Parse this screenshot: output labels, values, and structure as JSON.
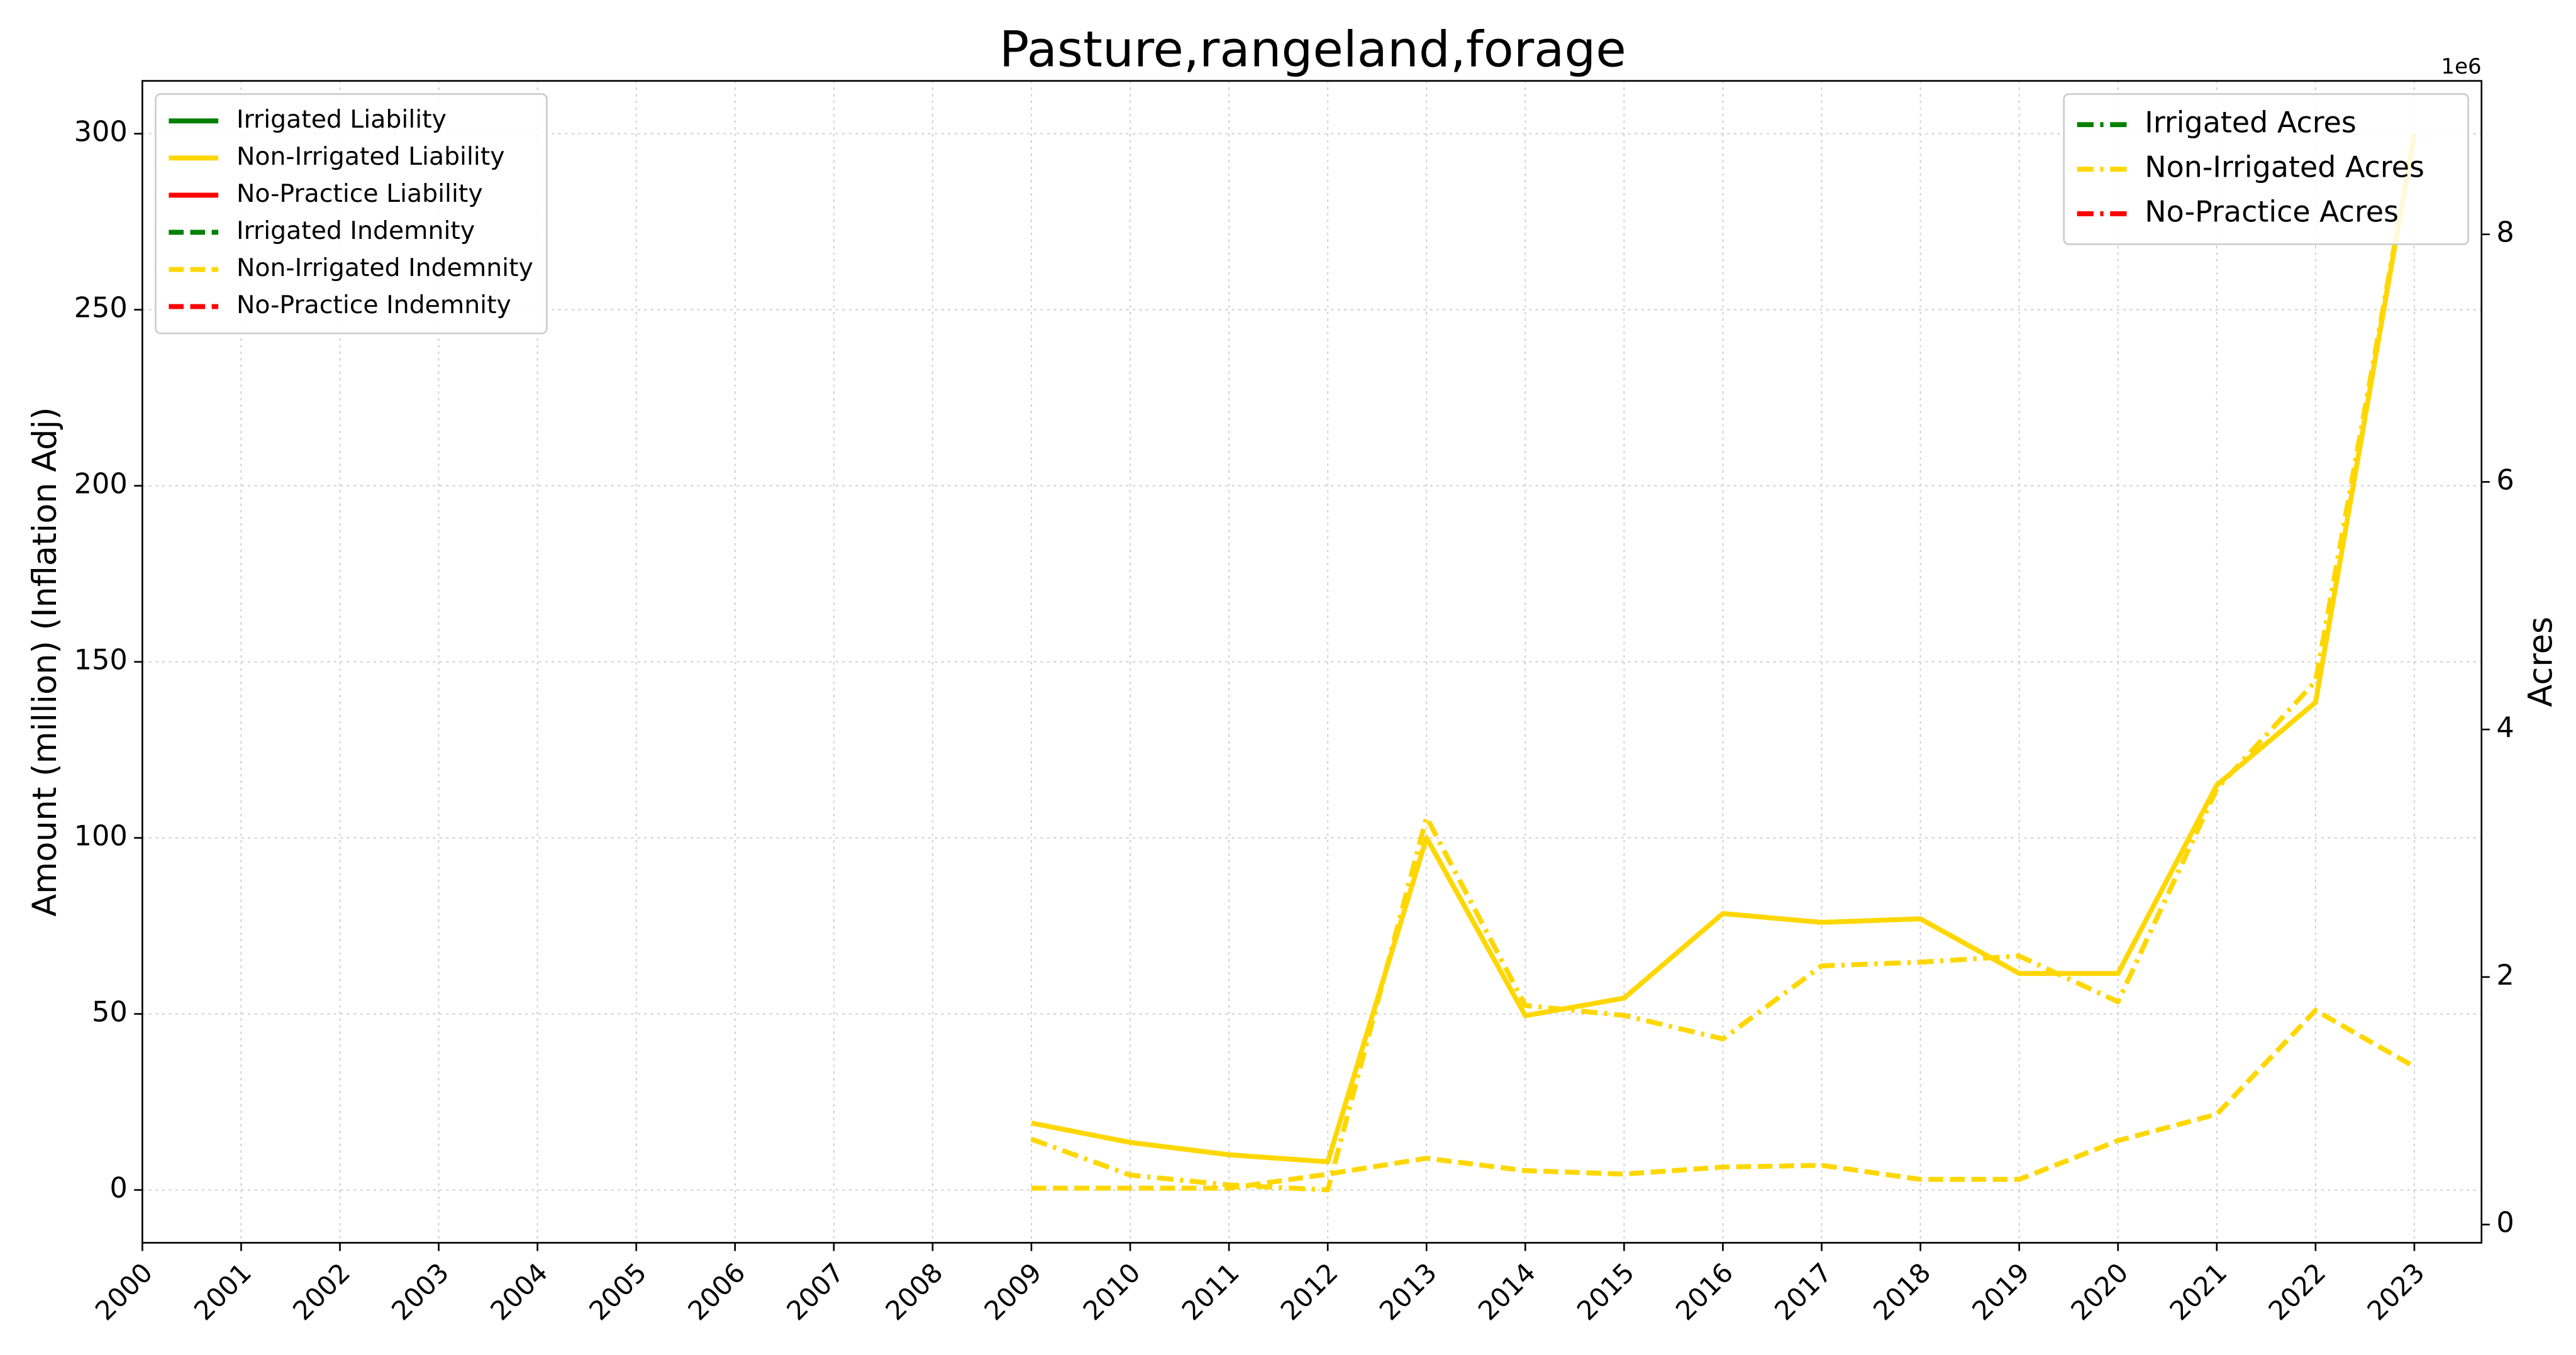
{
  "chart_data": {
    "type": "line",
    "title": "Pasture,rangeland,forage",
    "y_label": "Amount (million) (Inflation Adj)",
    "y2_label": "Acres",
    "y2_offset_label": "1e6",
    "categories": [
      "2000",
      "2001",
      "2002",
      "2003",
      "2004",
      "2005",
      "2006",
      "2007",
      "2008",
      "2009",
      "2010",
      "2011",
      "2012",
      "2013",
      "2014",
      "2015",
      "2016",
      "2017",
      "2018",
      "2019",
      "2020",
      "2021",
      "2022",
      "2023"
    ],
    "ylim": [
      -15,
      315
    ],
    "yticks": [
      0,
      50,
      100,
      150,
      200,
      250,
      300
    ],
    "y2lim": [
      -147000,
      9240000
    ],
    "y2ticks": [
      {
        "value": 0,
        "label": "0"
      },
      {
        "value": 2000000,
        "label": "2"
      },
      {
        "value": 4000000,
        "label": "4"
      },
      {
        "value": 6000000,
        "label": "6"
      },
      {
        "value": 8000000,
        "label": "8"
      }
    ],
    "grid": true,
    "legend": "upper left",
    "legend2": "upper right",
    "series": [
      {
        "name": "Irrigated Liability",
        "color": "green",
        "linestyle": "solid",
        "values": [
          null,
          null,
          null,
          null,
          null,
          null,
          null,
          null,
          null,
          null,
          null,
          null,
          null,
          null,
          null,
          null,
          null,
          null,
          null,
          null,
          null,
          null,
          null,
          null
        ]
      },
      {
        "name": "Non-Irrigated Liability",
        "color": "gold",
        "linestyle": "solid",
        "values": [
          null,
          null,
          null,
          null,
          null,
          null,
          null,
          null,
          null,
          19,
          13.5,
          10,
          8,
          100,
          49.5,
          54.5,
          78.5,
          76,
          77,
          61.5,
          61.5,
          115,
          138.5,
          300
        ]
      },
      {
        "name": "No-Practice Liability",
        "color": "red",
        "linestyle": "solid",
        "values": [
          null,
          null,
          null,
          null,
          null,
          null,
          null,
          null,
          null,
          null,
          null,
          null,
          null,
          null,
          null,
          null,
          null,
          null,
          null,
          null,
          null,
          null,
          null,
          null
        ]
      },
      {
        "name": "Irrigated Indemnity",
        "color": "green",
        "linestyle": "dashed",
        "values": [
          null,
          null,
          null,
          null,
          null,
          null,
          null,
          null,
          null,
          null,
          null,
          null,
          null,
          null,
          null,
          null,
          null,
          null,
          null,
          null,
          null,
          null,
          null,
          null
        ]
      },
      {
        "name": "Non-Irrigated Indemnity",
        "color": "gold",
        "linestyle": "dashed",
        "values": [
          null,
          null,
          null,
          null,
          null,
          null,
          null,
          null,
          null,
          0.5,
          0.5,
          0.5,
          4.5,
          9,
          5.5,
          4.5,
          6.5,
          7,
          3,
          3,
          14,
          21.5,
          51,
          35
        ]
      },
      {
        "name": "No-Practice Indemnity",
        "color": "red",
        "linestyle": "dashed",
        "values": [
          null,
          null,
          null,
          null,
          null,
          null,
          null,
          null,
          null,
          null,
          null,
          null,
          null,
          null,
          null,
          null,
          null,
          null,
          null,
          null,
          null,
          null,
          null,
          null
        ]
      },
      {
        "name": "Irrigated Acres",
        "color": "green",
        "linestyle": "dashdot",
        "axis": "y2",
        "values": [
          null,
          null,
          null,
          null,
          null,
          null,
          null,
          null,
          null,
          null,
          null,
          null,
          null,
          null,
          null,
          null,
          null,
          null,
          null,
          null,
          null,
          null,
          null,
          null
        ]
      },
      {
        "name": "Non-Irrigated Acres",
        "color": "gold",
        "linestyle": "dashdot",
        "axis": "y2",
        "values": [
          null,
          null,
          null,
          null,
          null,
          null,
          null,
          null,
          null,
          690000,
          400000,
          320000,
          280000,
          3290000,
          1770000,
          1690000,
          1500000,
          2090000,
          2120000,
          2170000,
          1800000,
          3520000,
          4390000,
          8800000
        ]
      },
      {
        "name": "No-Practice Acres",
        "color": "red",
        "linestyle": "dashdot",
        "axis": "y2",
        "values": [
          null,
          null,
          null,
          null,
          null,
          null,
          null,
          null,
          null,
          null,
          null,
          null,
          null,
          null,
          null,
          null,
          null,
          null,
          null,
          null,
          null,
          null,
          null,
          null
        ]
      }
    ]
  }
}
